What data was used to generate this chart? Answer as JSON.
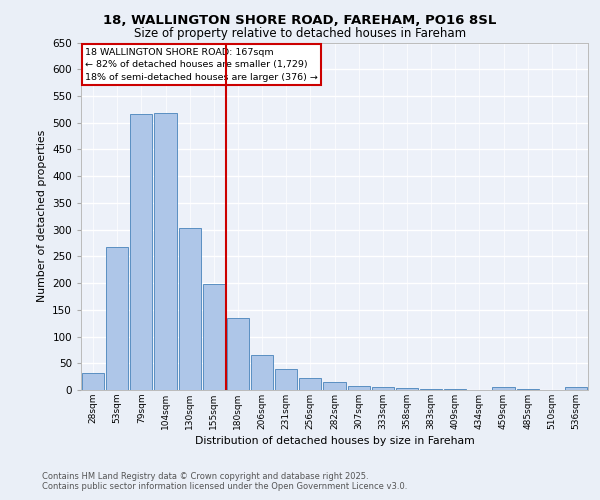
{
  "title_line1": "18, WALLINGTON SHORE ROAD, FAREHAM, PO16 8SL",
  "title_line2": "Size of property relative to detached houses in Fareham",
  "xlabel": "Distribution of detached houses by size in Fareham",
  "ylabel": "Number of detached properties",
  "bar_labels": [
    "28sqm",
    "53sqm",
    "79sqm",
    "104sqm",
    "130sqm",
    "155sqm",
    "180sqm",
    "206sqm",
    "231sqm",
    "256sqm",
    "282sqm",
    "307sqm",
    "333sqm",
    "358sqm",
    "383sqm",
    "409sqm",
    "434sqm",
    "459sqm",
    "485sqm",
    "510sqm",
    "536sqm"
  ],
  "bar_values": [
    32,
    267,
    517,
    519,
    303,
    198,
    134,
    66,
    40,
    22,
    15,
    8,
    5,
    3,
    2,
    1,
    0,
    5,
    1,
    0,
    5
  ],
  "bar_color": "#aec6e8",
  "bar_edge_color": "#5a8fc2",
  "annotation_line1": "18 WALLINGTON SHORE ROAD: 167sqm",
  "annotation_line2": "← 82% of detached houses are smaller (1,729)",
  "annotation_line3": "18% of semi-detached houses are larger (376) →",
  "vline_x": 5.5,
  "vline_color": "#cc0000",
  "annotation_box_color": "#cc0000",
  "ylim": [
    0,
    650
  ],
  "yticks": [
    0,
    50,
    100,
    150,
    200,
    250,
    300,
    350,
    400,
    450,
    500,
    550,
    600,
    650
  ],
  "footnote_line1": "Contains HM Land Registry data © Crown copyright and database right 2025.",
  "footnote_line2": "Contains public sector information licensed under the Open Government Licence v3.0.",
  "bg_color": "#eaeff7",
  "plot_bg_color": "#edf1f9"
}
